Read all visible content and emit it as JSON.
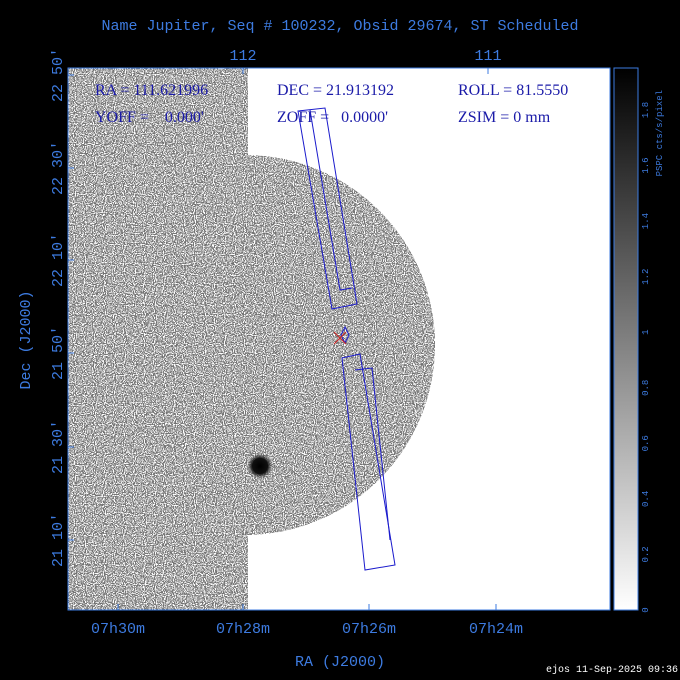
{
  "title": "Name Jupiter, Seq # 100232, Obsid 29674, ST Scheduled",
  "top_axis": {
    "labels": [
      "112",
      "111"
    ]
  },
  "left_axis": {
    "title": "Dec (J2000)",
    "labels": [
      "22 50'",
      "22 30'",
      "22 10'",
      "21 50'",
      "21 30'",
      "21 10'"
    ]
  },
  "bottom_axis": {
    "title": "RA (J2000)",
    "labels": [
      "07h30m",
      "07h28m",
      "07h26m",
      "07h24m"
    ]
  },
  "colorbar": {
    "title": "PSPC cts/s/pixel",
    "labels": [
      "0",
      "0.2",
      "0.4",
      "0.6",
      "0.8",
      "1",
      "1.2",
      "1.4",
      "1.6",
      "1.8"
    ]
  },
  "info": [
    [
      "RA = 111.621996",
      "DEC = 21.913192",
      "ROLL = 81.5550"
    ],
    [
      "YOFF =    0.000'",
      "ZOFF =   0.0000'",
      "ZSIM = 0 mm"
    ]
  ],
  "footer": "ejos 11-Sep-2025 09:36"
}
